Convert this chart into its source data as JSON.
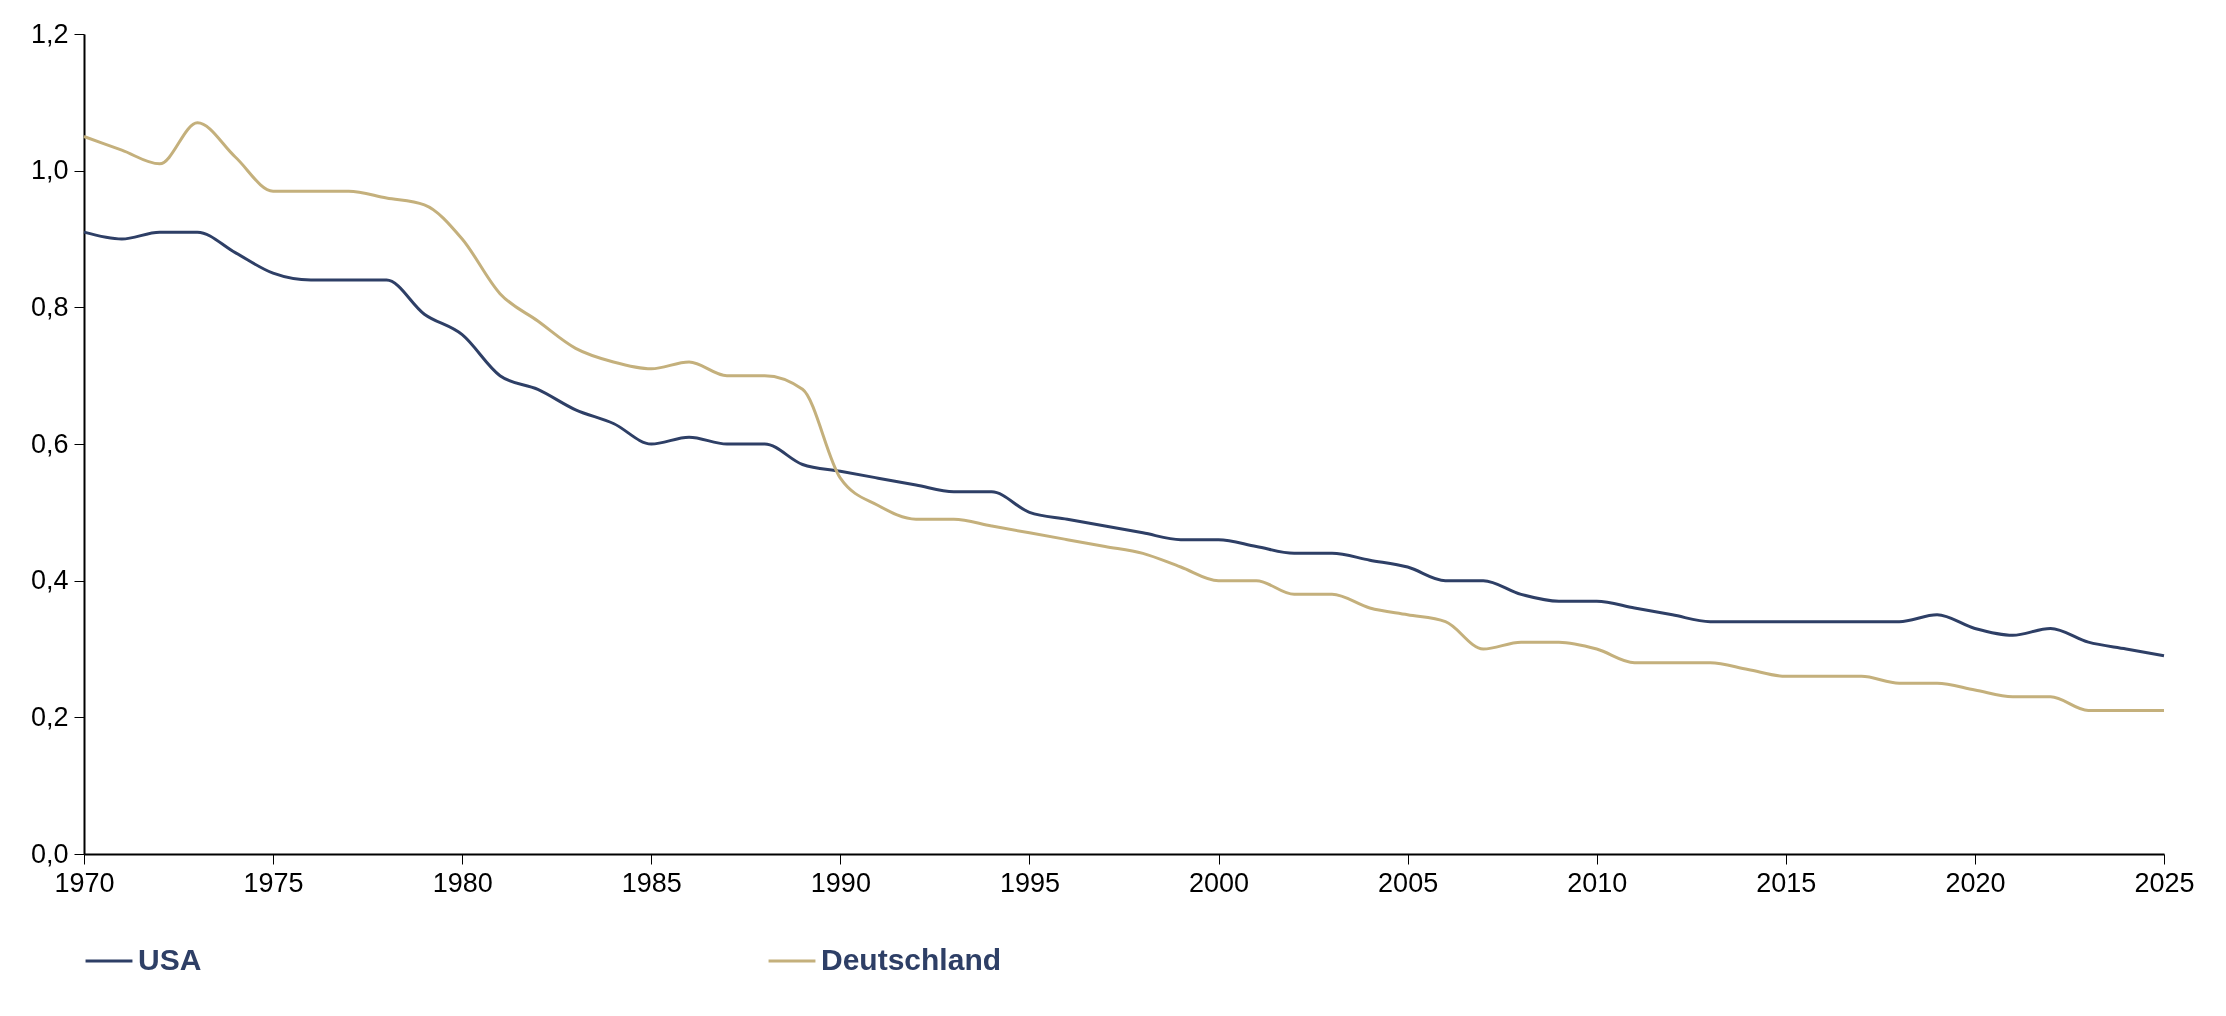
{
  "chart_data": {
    "type": "line",
    "x": [
      1970,
      1971,
      1972,
      1973,
      1974,
      1975,
      1976,
      1977,
      1978,
      1979,
      1980,
      1981,
      1982,
      1983,
      1984,
      1985,
      1986,
      1987,
      1988,
      1989,
      1990,
      1991,
      1992,
      1993,
      1994,
      1995,
      1996,
      1997,
      1998,
      1999,
      2000,
      2001,
      2002,
      2003,
      2004,
      2005,
      2006,
      2007,
      2008,
      2009,
      2010,
      2011,
      2012,
      2013,
      2014,
      2015,
      2016,
      2017,
      2018,
      2019,
      2020,
      2021,
      2022,
      2023,
      2024,
      2025
    ],
    "series": [
      {
        "name": "USA",
        "color": "#2e3f66",
        "values": [
          0.91,
          0.9,
          0.91,
          0.91,
          0.88,
          0.85,
          0.84,
          0.84,
          0.84,
          0.79,
          0.76,
          0.7,
          0.68,
          0.65,
          0.63,
          0.6,
          0.61,
          0.6,
          0.6,
          0.57,
          0.56,
          0.55,
          0.54,
          0.53,
          0.53,
          0.5,
          0.49,
          0.48,
          0.47,
          0.46,
          0.46,
          0.45,
          0.44,
          0.44,
          0.43,
          0.42,
          0.4,
          0.4,
          0.38,
          0.37,
          0.37,
          0.36,
          0.35,
          0.34,
          0.34,
          0.34,
          0.34,
          0.34,
          0.34,
          0.35,
          0.33,
          0.32,
          0.33,
          0.31,
          0.3,
          0.29
        ]
      },
      {
        "name": "Deutschland",
        "color": "#c4b07c",
        "values": [
          1.05,
          1.03,
          1.01,
          1.07,
          1.02,
          0.97,
          0.97,
          0.97,
          0.96,
          0.95,
          0.9,
          0.82,
          0.78,
          0.74,
          0.72,
          0.71,
          0.72,
          0.7,
          0.7,
          0.68,
          0.55,
          0.51,
          0.49,
          0.49,
          0.48,
          0.47,
          0.46,
          0.45,
          0.44,
          0.42,
          0.4,
          0.4,
          0.38,
          0.38,
          0.36,
          0.35,
          0.34,
          0.3,
          0.31,
          0.31,
          0.3,
          0.28,
          0.28,
          0.28,
          0.27,
          0.26,
          0.26,
          0.26,
          0.25,
          0.25,
          0.24,
          0.23,
          0.23,
          0.21,
          0.21,
          0.21
        ]
      }
    ],
    "xlim": [
      1970,
      2025
    ],
    "xticks": [
      1970,
      1975,
      1980,
      1985,
      1990,
      1995,
      2000,
      2005,
      2010,
      2015,
      2020,
      2025
    ],
    "ylim": [
      0,
      1.2
    ],
    "yticks": [
      {
        "value": 0,
        "label": "0,0"
      },
      {
        "value": 0.2,
        "label": "0,2"
      },
      {
        "value": 0.4,
        "label": "0,4"
      },
      {
        "value": 0.6,
        "label": "0,6"
      },
      {
        "value": 0.8,
        "label": "0,8"
      },
      {
        "value": 1.0,
        "label": "1,0"
      },
      {
        "value": 1.2,
        "label": "1,2"
      }
    ],
    "legend": "bottom",
    "grid": false
  }
}
